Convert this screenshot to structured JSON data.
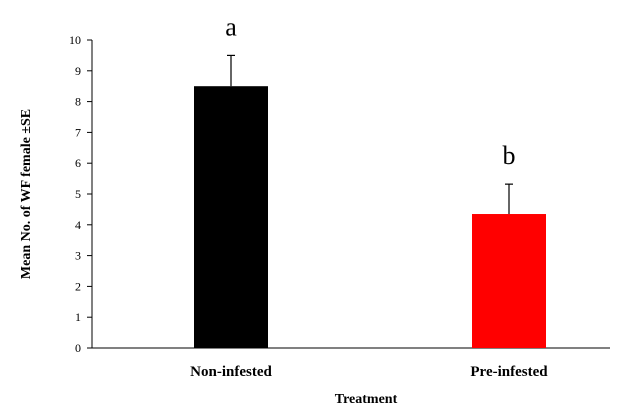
{
  "chart_data": {
    "type": "bar",
    "title": "",
    "xlabel": "Treatment",
    "ylabel": "Mean  No. of WF female  ±SE",
    "categories": [
      "Non-infested",
      "Pre-infested"
    ],
    "values": [
      8.5,
      4.35
    ],
    "errors": [
      1.0,
      0.97
    ],
    "significance_labels": [
      "a",
      "b"
    ],
    "colors": [
      "#000000",
      "#ff0000"
    ],
    "ylim": [
      0,
      10
    ],
    "yticks": [
      0,
      1,
      2,
      3,
      4,
      5,
      6,
      7,
      8,
      9,
      10
    ],
    "grid": false,
    "legend": "none"
  }
}
